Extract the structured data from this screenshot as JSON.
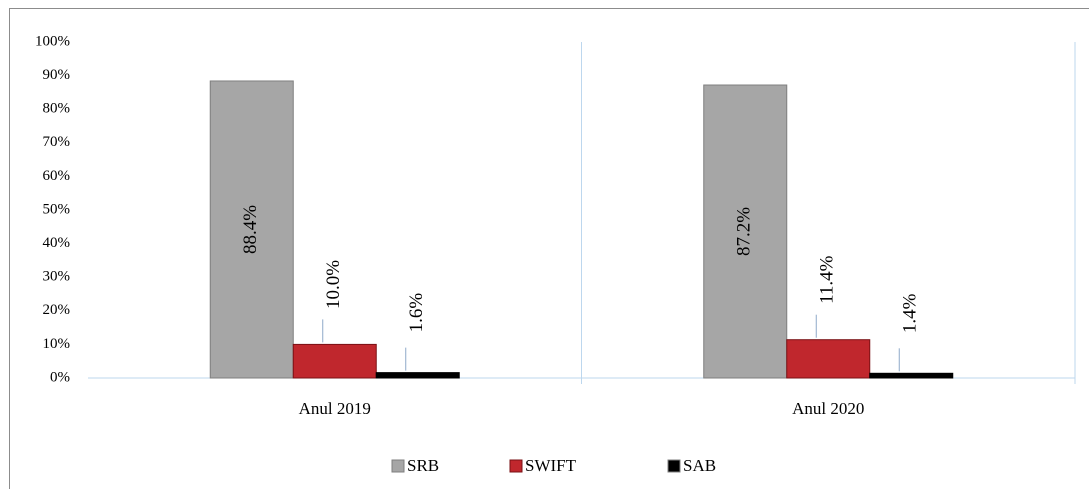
{
  "chart_data": {
    "type": "bar",
    "categories": [
      "Anul 2019",
      "Anul 2020"
    ],
    "series": [
      {
        "name": "SRB",
        "color": "#a6a6a6",
        "values": [
          88.4,
          87.2
        ],
        "value_labels": [
          "88.4%",
          "87.2%"
        ]
      },
      {
        "name": "SWIFT",
        "color": "#c0272d",
        "values": [
          10.0,
          11.4
        ],
        "value_labels": [
          "10.0%",
          "11.4%"
        ]
      },
      {
        "name": "SAB",
        "color": "#000000",
        "values": [
          1.6,
          1.4
        ],
        "value_labels": [
          "1.6%",
          "1.4%"
        ]
      }
    ],
    "ylim": [
      0,
      100
    ],
    "yticks": [
      {
        "value": 0,
        "label": "0%"
      },
      {
        "value": 10,
        "label": "10%"
      },
      {
        "value": 20,
        "label": "20%"
      },
      {
        "value": 30,
        "label": "30%"
      },
      {
        "value": 40,
        "label": "40%"
      },
      {
        "value": 50,
        "label": "50%"
      },
      {
        "value": 60,
        "label": "60%"
      },
      {
        "value": 70,
        "label": "70%"
      },
      {
        "value": 80,
        "label": "80%"
      },
      {
        "value": 90,
        "label": "90%"
      },
      {
        "value": 100,
        "label": "100%"
      }
    ],
    "grid": false,
    "legend": "bottom"
  }
}
